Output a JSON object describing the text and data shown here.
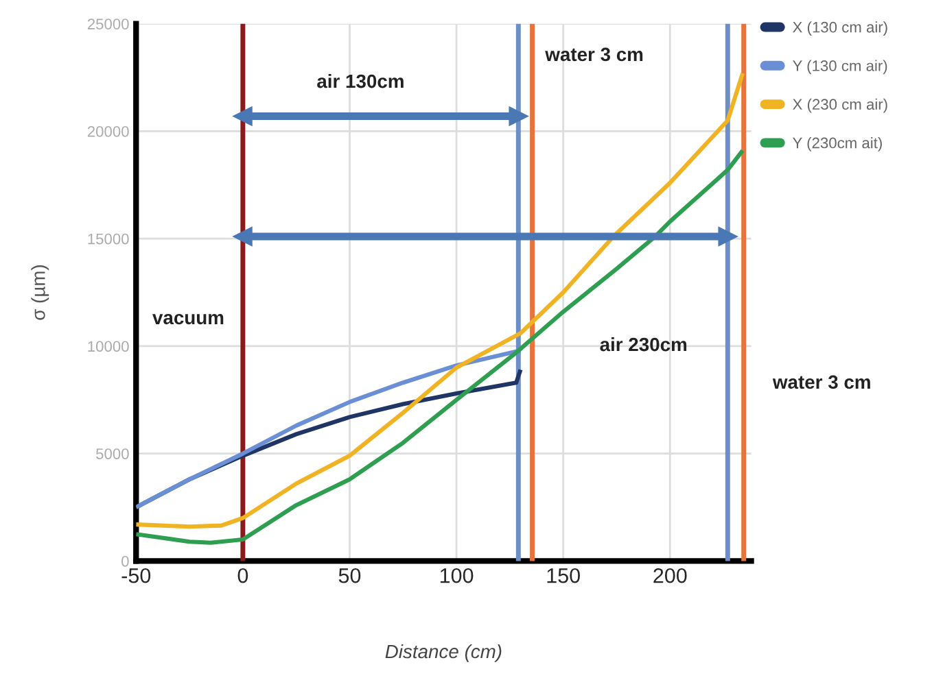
{
  "chart_data": {
    "type": "line",
    "xlabel": "Distance (cm)",
    "ylabel": "σ (µm)",
    "series": [
      {
        "name": "X (130 cm air)",
        "color": "#1f3566",
        "x": [
          -50,
          -25,
          0,
          25,
          50,
          75,
          100,
          128,
          130
        ],
        "values": [
          2500,
          3800,
          4900,
          5900,
          6700,
          7300,
          7800,
          8300,
          8900
        ]
      },
      {
        "name": "Y (130 cm air)",
        "color": "#6a8fd4",
        "x": [
          -50,
          -25,
          0,
          25,
          50,
          75,
          100,
          130
        ],
        "values": [
          2500,
          3800,
          5000,
          6300,
          7400,
          8300,
          9100,
          9800
        ]
      },
      {
        "name": "X (230 cm air)",
        "color": "#f0b323",
        "x": [
          -50,
          -25,
          -10,
          0,
          25,
          50,
          75,
          100,
          130,
          150,
          173.5,
          200,
          227,
          234
        ],
        "values": [
          1700,
          1600,
          1650,
          2000,
          3600,
          4900,
          6900,
          9000,
          10600,
          12500,
          15100,
          17600,
          20500,
          22700
        ]
      },
      {
        "name": "Y (230cm ait)",
        "color": "#2e9e50",
        "x": [
          -50,
          -25,
          -15,
          0,
          25,
          50,
          75,
          100,
          128,
          150,
          175,
          193,
          200,
          227,
          234
        ],
        "values": [
          1250,
          900,
          850,
          1000,
          2600,
          3800,
          5500,
          7500,
          9700,
          11600,
          13600,
          15100,
          15800,
          18200,
          19100
        ]
      },
      {
        "type": "line",
        "color": "#4a78b5",
        "marker": "triangle",
        "x": [
          0,
          129
        ],
        "values": [
          20700,
          20700
        ]
      },
      {
        "type": "line",
        "color": "#4a78b5",
        "marker": "triangle",
        "x": [
          0,
          227
        ],
        "values": [
          15100,
          15100
        ]
      }
    ],
    "xlim": [
      -50,
      238
    ],
    "xticks": [
      -50,
      0,
      50,
      100,
      150,
      200
    ],
    "ylim": [
      0,
      25000
    ],
    "yticks": [
      0,
      5000,
      10000,
      15000,
      20000,
      25000
    ],
    "ref_lines": [
      {
        "axis": "x",
        "value": 0,
        "color": "#8b1a1a"
      },
      {
        "axis": "x",
        "value": 129,
        "color": "#6d8fc7"
      },
      {
        "axis": "x",
        "value": 135.5,
        "color": "#e8743b"
      },
      {
        "axis": "x",
        "value": 227,
        "color": "#6d8fc7"
      },
      {
        "axis": "x",
        "value": 234.5,
        "color": "#e8743b"
      }
    ],
    "annotations": [
      "air 130cm",
      "water 3 cm",
      "vacuum",
      "air 230cm",
      "water 3 cm"
    ],
    "grid": true,
    "legend": "top right"
  }
}
